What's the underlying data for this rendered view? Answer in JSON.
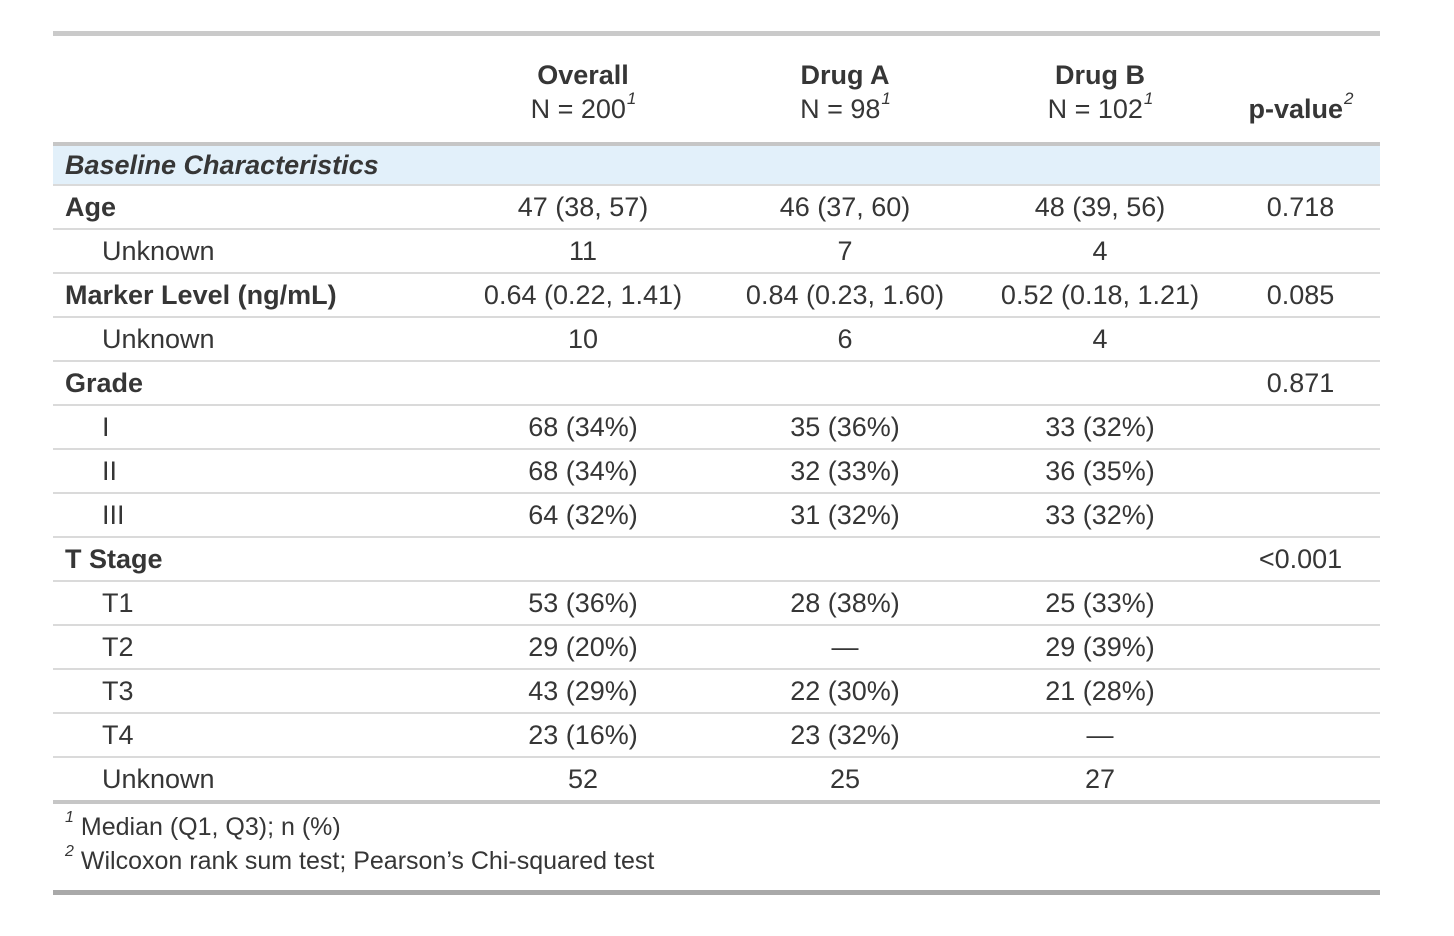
{
  "page": {
    "background": "#ffffff",
    "text_color": "#363636"
  },
  "table": {
    "columns": [
      {
        "id": "label",
        "title": ""
      },
      {
        "id": "overall",
        "title": "Overall",
        "subtitle": "N = 200",
        "footnote_mark": "1"
      },
      {
        "id": "drug_a",
        "title": "Drug A",
        "subtitle": "N = 98",
        "footnote_mark": "1"
      },
      {
        "id": "drug_b",
        "title": "Drug B",
        "subtitle": "N = 102",
        "footnote_mark": "1"
      },
      {
        "id": "p_value",
        "title": "p-value",
        "footnote_mark": "2"
      }
    ],
    "group_header": "Baseline Characteristics",
    "rows": [
      {
        "label": "Age",
        "bold": true,
        "indent": false,
        "overall": "47 (38, 57)",
        "drug_a": "46 (37, 60)",
        "drug_b": "48 (39, 56)",
        "p": "0.718"
      },
      {
        "label": "Unknown",
        "bold": false,
        "indent": true,
        "overall": "11",
        "drug_a": "7",
        "drug_b": "4",
        "p": ""
      },
      {
        "label": "Marker Level (ng/mL)",
        "bold": true,
        "indent": false,
        "overall": "0.64 (0.22, 1.41)",
        "drug_a": "0.84 (0.23, 1.60)",
        "drug_b": "0.52 (0.18, 1.21)",
        "p": "0.085"
      },
      {
        "label": "Unknown",
        "bold": false,
        "indent": true,
        "overall": "10",
        "drug_a": "6",
        "drug_b": "4",
        "p": ""
      },
      {
        "label": "Grade",
        "bold": true,
        "indent": false,
        "overall": "",
        "drug_a": "",
        "drug_b": "",
        "p": "0.871"
      },
      {
        "label": "I",
        "bold": false,
        "indent": true,
        "overall": "68 (34%)",
        "drug_a": "35 (36%)",
        "drug_b": "33 (32%)",
        "p": ""
      },
      {
        "label": "II",
        "bold": false,
        "indent": true,
        "overall": "68 (34%)",
        "drug_a": "32 (33%)",
        "drug_b": "36 (35%)",
        "p": ""
      },
      {
        "label": "III",
        "bold": false,
        "indent": true,
        "overall": "64 (32%)",
        "drug_a": "31 (32%)",
        "drug_b": "33 (32%)",
        "p": ""
      },
      {
        "label": "T Stage",
        "bold": true,
        "indent": false,
        "overall": "",
        "drug_a": "",
        "drug_b": "",
        "p": "<0.001"
      },
      {
        "label": "T1",
        "bold": false,
        "indent": true,
        "overall": "53 (36%)",
        "drug_a": "28 (38%)",
        "drug_b": "25 (33%)",
        "p": ""
      },
      {
        "label": "T2",
        "bold": false,
        "indent": true,
        "overall": "29 (20%)",
        "drug_a": "—",
        "drug_b": "29 (39%)",
        "p": ""
      },
      {
        "label": "T3",
        "bold": false,
        "indent": true,
        "overall": "43 (29%)",
        "drug_a": "22 (30%)",
        "drug_b": "21 (28%)",
        "p": ""
      },
      {
        "label": "T4",
        "bold": false,
        "indent": true,
        "overall": "23 (16%)",
        "drug_a": "23 (32%)",
        "drug_b": "—",
        "p": ""
      },
      {
        "label": "Unknown",
        "bold": false,
        "indent": true,
        "overall": "52",
        "drug_a": "25",
        "drug_b": "27",
        "p": ""
      }
    ],
    "footnotes": [
      {
        "mark": "1",
        "text": "Median (Q1, Q3); n (%)"
      },
      {
        "mark": "2",
        "text": "Wilcoxon rank sum test; Pearson’s Chi-squared test"
      }
    ],
    "colors": {
      "group_row_bg": "#e2f0fa",
      "separator": "#dadada",
      "rule_mid": "#c6c6c6",
      "rule_bottom": "#a9a9a9"
    }
  }
}
